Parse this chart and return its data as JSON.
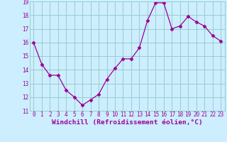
{
  "x": [
    0,
    1,
    2,
    3,
    4,
    5,
    6,
    7,
    8,
    9,
    10,
    11,
    12,
    13,
    14,
    15,
    16,
    17,
    18,
    19,
    20,
    21,
    22,
    23
  ],
  "y": [
    16.0,
    14.4,
    13.6,
    13.6,
    12.5,
    12.0,
    11.4,
    11.8,
    12.2,
    13.3,
    14.1,
    14.8,
    14.8,
    15.6,
    17.6,
    18.9,
    18.9,
    17.0,
    17.2,
    17.9,
    17.5,
    17.2,
    16.5,
    16.1
  ],
  "line_color": "#990099",
  "marker": "D",
  "markersize": 2.5,
  "linewidth": 0.9,
  "bg_color": "#cceeff",
  "grid_color": "#99cccc",
  "xlabel": "Windchill (Refroidissement éolien,°C)",
  "xlabel_color": "#990099",
  "tick_color": "#990099",
  "ylim": [
    11,
    19
  ],
  "xlim": [
    -0.5,
    23.5
  ],
  "yticks": [
    11,
    12,
    13,
    14,
    15,
    16,
    17,
    18,
    19
  ],
  "xticks": [
    0,
    1,
    2,
    3,
    4,
    5,
    6,
    7,
    8,
    9,
    10,
    11,
    12,
    13,
    14,
    15,
    16,
    17,
    18,
    19,
    20,
    21,
    22,
    23
  ],
  "tick_fontsize": 5.5,
  "xlabel_fontsize": 6.8
}
